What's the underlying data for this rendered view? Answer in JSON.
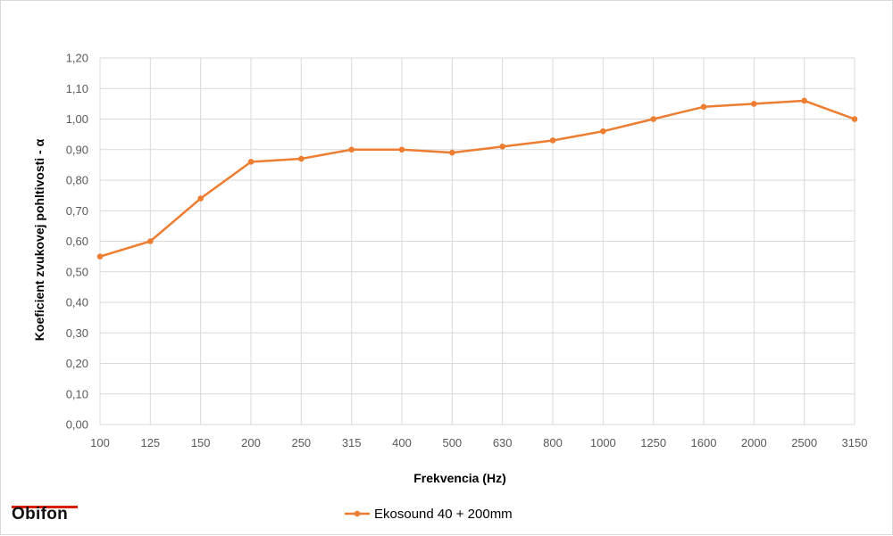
{
  "chart_data": {
    "type": "line",
    "categories": [
      "100",
      "125",
      "150",
      "200",
      "250",
      "315",
      "400",
      "500",
      "630",
      "800",
      "1000",
      "1250",
      "1600",
      "2000",
      "2500",
      "3150"
    ],
    "series": [
      {
        "name": "Ekosound 40 + 200mm",
        "values": [
          0.55,
          0.6,
          0.74,
          0.86,
          0.87,
          0.9,
          0.9,
          0.89,
          0.91,
          0.93,
          0.96,
          1.0,
          1.04,
          1.05,
          1.06,
          1.0
        ],
        "color": "#ed7d31"
      }
    ],
    "xlabel": "Frekvencia (Hz)",
    "ylabel": "Koeficient zvukovej pohltivosti - α",
    "ylim": [
      0,
      1.2
    ],
    "yticks": [
      "0,00",
      "0,10",
      "0,20",
      "0,30",
      "0,40",
      "0,50",
      "0,60",
      "0,70",
      "0,80",
      "0,90",
      "1,00",
      "1,10",
      "1,20"
    ],
    "grid": true,
    "legend_position": "bottom"
  },
  "branding": {
    "logo_text": "Obifon",
    "logo_color": "#d81e05"
  }
}
